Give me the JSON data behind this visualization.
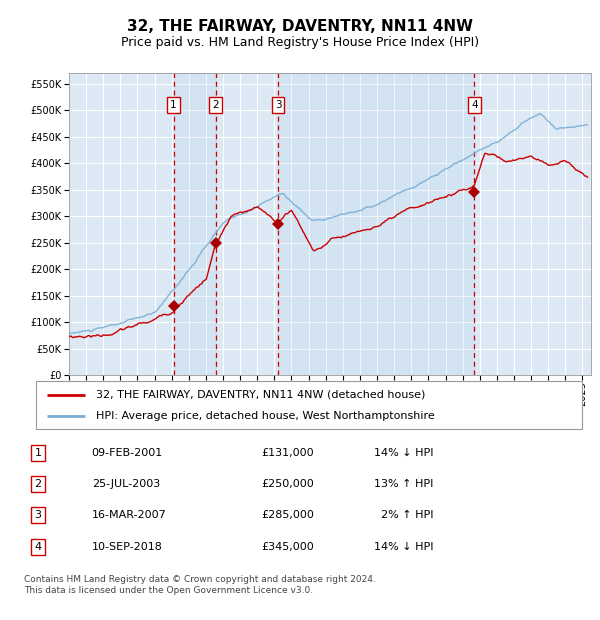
{
  "title": "32, THE FAIRWAY, DAVENTRY, NN11 4NW",
  "subtitle": "Price paid vs. HM Land Registry's House Price Index (HPI)",
  "ytick_values": [
    0,
    50000,
    100000,
    150000,
    200000,
    250000,
    300000,
    350000,
    400000,
    450000,
    500000,
    550000
  ],
  "ylim": [
    0,
    570000
  ],
  "xlim_start": 1995.0,
  "xlim_end": 2025.5,
  "plot_bg_color": "#dce9f5",
  "grid_color": "#ffffff",
  "sale_dates": [
    2001.11,
    2003.56,
    2007.21,
    2018.69
  ],
  "sale_prices": [
    131000,
    250000,
    285000,
    345000
  ],
  "sale_labels": [
    "1",
    "2",
    "3",
    "4"
  ],
  "hpi_line_color": "#7aadd4",
  "price_line_color": "#cc0000",
  "sale_marker_color": "#aa0000",
  "dashed_line_color": "#cc0000",
  "shade_color": "#aac8e8",
  "legend_line1": "32, THE FAIRWAY, DAVENTRY, NN11 4NW (detached house)",
  "legend_line2": "HPI: Average price, detached house, West Northamptonshire",
  "table_rows": [
    {
      "num": "1",
      "date": "09-FEB-2001",
      "price": "£131,000",
      "pct": "14% ↓ HPI"
    },
    {
      "num": "2",
      "date": "25-JUL-2003",
      "price": "£250,000",
      "pct": "13% ↑ HPI"
    },
    {
      "num": "3",
      "date": "16-MAR-2007",
      "price": "£285,000",
      "pct": "  2% ↑ HPI"
    },
    {
      "num": "4",
      "date": "10-SEP-2018",
      "price": "£345,000",
      "pct": "14% ↓ HPI"
    }
  ],
  "footnote": "Contains HM Land Registry data © Crown copyright and database right 2024.\nThis data is licensed under the Open Government Licence v3.0.",
  "title_fontsize": 11,
  "subtitle_fontsize": 9,
  "tick_fontsize": 7,
  "legend_fontsize": 8,
  "table_fontsize": 8,
  "footnote_fontsize": 6.5
}
